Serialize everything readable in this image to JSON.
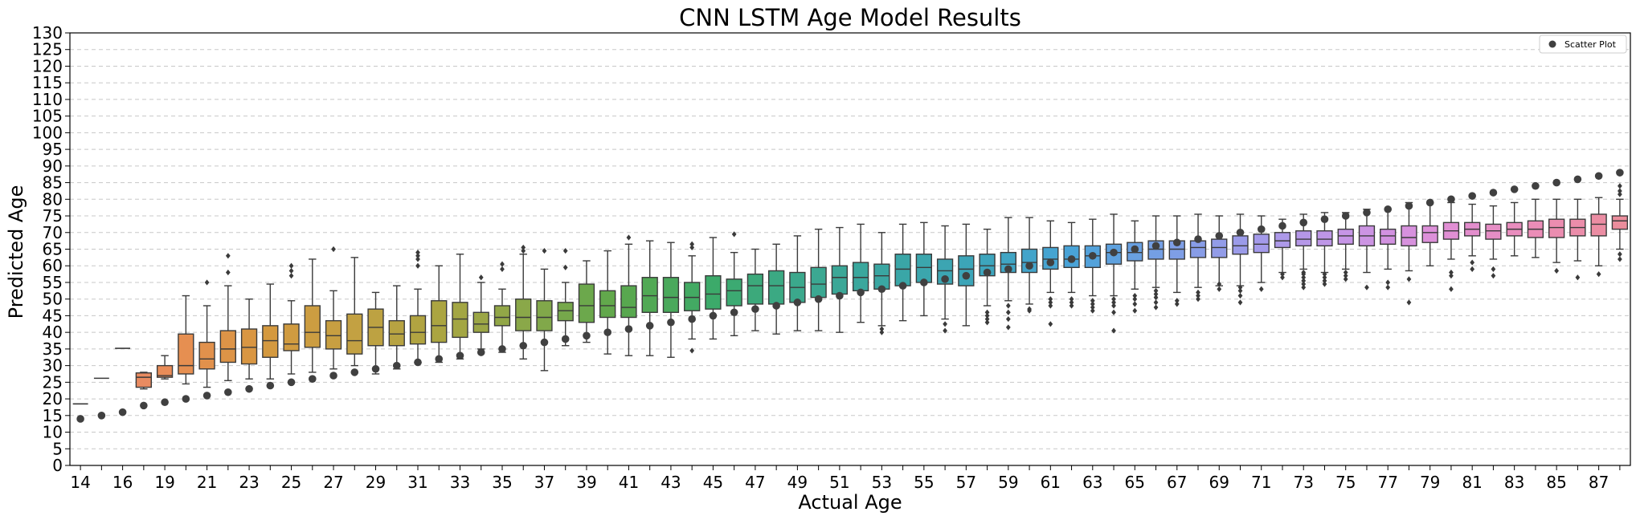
{
  "chart_data": {
    "type": "box",
    "title": "CNN LSTM Age Model Results",
    "xlabel": "Actual Age",
    "ylabel": "Predicted Age",
    "ylim": [
      0,
      130
    ],
    "yticks": [
      0,
      5,
      10,
      15,
      20,
      25,
      30,
      35,
      40,
      45,
      50,
      55,
      60,
      65,
      70,
      75,
      80,
      85,
      90,
      95,
      100,
      105,
      110,
      115,
      120,
      125,
      130
    ],
    "grid": "y dashed",
    "legend": {
      "location": "top-right",
      "entries": [
        "Scatter Plot"
      ]
    },
    "categories": [
      14,
      15,
      16,
      18,
      19,
      20,
      21,
      22,
      23,
      24,
      25,
      26,
      27,
      28,
      29,
      30,
      31,
      32,
      33,
      34,
      35,
      36,
      37,
      38,
      39,
      40,
      41,
      42,
      43,
      44,
      45,
      46,
      47,
      48,
      49,
      50,
      51,
      52,
      53,
      54,
      55,
      56,
      57,
      58,
      59,
      60,
      61,
      62,
      63,
      64,
      65,
      66,
      67,
      68,
      69,
      70,
      71,
      72,
      73,
      74,
      75,
      76,
      77,
      78,
      79,
      80,
      81,
      82,
      83,
      84,
      85,
      86,
      87,
      88
    ],
    "shown_tick_labels": [
      "14",
      "16",
      "19",
      "21",
      "23",
      "25",
      "27",
      "29",
      "31",
      "33",
      "35",
      "37",
      "39",
      "41",
      "43",
      "45",
      "47",
      "49",
      "51",
      "53",
      "55",
      "57",
      "59",
      "61",
      "63",
      "65",
      "67",
      "69",
      "71",
      "73",
      "75",
      "77",
      "79",
      "81",
      "83",
      "85",
      "87"
    ],
    "boxes": [
      {
        "q1": 18.5,
        "med": 18.5,
        "q3": 18.5,
        "wlo": 18.5,
        "whi": 18.5,
        "fliers": []
      },
      {
        "q1": 26.2,
        "med": 26.2,
        "q3": 26.2,
        "wlo": 26.2,
        "whi": 26.2,
        "fliers": []
      },
      {
        "q1": 35.2,
        "med": 35.2,
        "q3": 35.2,
        "wlo": 35.2,
        "whi": 35.2,
        "fliers": []
      },
      {
        "q1": 23.5,
        "med": 26.5,
        "q3": 27.8,
        "wlo": 23,
        "whi": 28,
        "fliers": []
      },
      {
        "q1": 26.5,
        "med": 27,
        "q3": 30,
        "wlo": 26,
        "whi": 33,
        "fliers": []
      },
      {
        "q1": 27.5,
        "med": 30,
        "q3": 39.5,
        "wlo": 24.5,
        "whi": 51,
        "fliers": []
      },
      {
        "q1": 29,
        "med": 32,
        "q3": 37,
        "wlo": 23.5,
        "whi": 48,
        "fliers": [
          55
        ]
      },
      {
        "q1": 31,
        "med": 35,
        "q3": 40.5,
        "wlo": 25.5,
        "whi": 54,
        "fliers": [
          58,
          63
        ]
      },
      {
        "q1": 30.5,
        "med": 35.5,
        "q3": 41,
        "wlo": 26,
        "whi": 50,
        "fliers": []
      },
      {
        "q1": 32.5,
        "med": 37.5,
        "q3": 42,
        "wlo": 26,
        "whi": 54.5,
        "fliers": []
      },
      {
        "q1": 34.5,
        "med": 36.5,
        "q3": 42.5,
        "wlo": 27.5,
        "whi": 49.5,
        "fliers": [
          57,
          58.5,
          60
        ]
      },
      {
        "q1": 35.5,
        "med": 40,
        "q3": 48,
        "wlo": 28,
        "whi": 62,
        "fliers": []
      },
      {
        "q1": 35,
        "med": 39,
        "q3": 43.5,
        "wlo": 29,
        "whi": 52.5,
        "fliers": [
          65
        ]
      },
      {
        "q1": 33.5,
        "med": 37.5,
        "q3": 45.5,
        "wlo": 30,
        "whi": 62.5,
        "fliers": []
      },
      {
        "q1": 36,
        "med": 41.5,
        "q3": 47,
        "wlo": 27.5,
        "whi": 52,
        "fliers": []
      },
      {
        "q1": 36,
        "med": 39.5,
        "q3": 43.5,
        "wlo": 29,
        "whi": 54,
        "fliers": []
      },
      {
        "q1": 36.5,
        "med": 40,
        "q3": 45,
        "wlo": 31,
        "whi": 53,
        "fliers": [
          60,
          62,
          63,
          64
        ]
      },
      {
        "q1": 37,
        "med": 42,
        "q3": 49.5,
        "wlo": 31,
        "whi": 60,
        "fliers": []
      },
      {
        "q1": 38.5,
        "med": 44,
        "q3": 49,
        "wlo": 32,
        "whi": 63.5,
        "fliers": []
      },
      {
        "q1": 40,
        "med": 42.5,
        "q3": 46,
        "wlo": 35,
        "whi": 55,
        "fliers": [
          56.5
        ]
      },
      {
        "q1": 42,
        "med": 44.5,
        "q3": 48,
        "wlo": 34,
        "whi": 53,
        "fliers": [
          59,
          60.5
        ]
      },
      {
        "q1": 40.5,
        "med": 44.5,
        "q3": 50,
        "wlo": 32,
        "whi": 63.5,
        "fliers": [
          64.5,
          65.5
        ]
      },
      {
        "q1": 40.5,
        "med": 44.5,
        "q3": 49.5,
        "wlo": 28.5,
        "whi": 59,
        "fliers": [
          64.5
        ]
      },
      {
        "q1": 43.5,
        "med": 46.5,
        "q3": 49,
        "wlo": 36,
        "whi": 55,
        "fliers": [
          59.5,
          64.5
        ]
      },
      {
        "q1": 43,
        "med": 48,
        "q3": 54.5,
        "wlo": 37,
        "whi": 61.5,
        "fliers": []
      },
      {
        "q1": 44.5,
        "med": 48,
        "q3": 52.5,
        "wlo": 33.5,
        "whi": 64.5,
        "fliers": []
      },
      {
        "q1": 44.5,
        "med": 47.5,
        "q3": 54,
        "wlo": 33,
        "whi": 66.5,
        "fliers": [
          68.5
        ]
      },
      {
        "q1": 46,
        "med": 51,
        "q3": 56.5,
        "wlo": 33,
        "whi": 67.5,
        "fliers": []
      },
      {
        "q1": 46,
        "med": 50.5,
        "q3": 56.5,
        "wlo": 32.5,
        "whi": 67,
        "fliers": []
      },
      {
        "q1": 46.5,
        "med": 50.5,
        "q3": 55,
        "wlo": 38,
        "whi": 63,
        "fliers": [
          34.5,
          65.5,
          66.5
        ]
      },
      {
        "q1": 47,
        "med": 51.5,
        "q3": 57,
        "wlo": 38,
        "whi": 68.5,
        "fliers": []
      },
      {
        "q1": 48,
        "med": 52.5,
        "q3": 56,
        "wlo": 39,
        "whi": 64,
        "fliers": [
          69.5
        ]
      },
      {
        "q1": 48.5,
        "med": 54,
        "q3": 57.5,
        "wlo": 40.5,
        "whi": 65,
        "fliers": []
      },
      {
        "q1": 48.5,
        "med": 54,
        "q3": 58.5,
        "wlo": 39.5,
        "whi": 66.5,
        "fliers": []
      },
      {
        "q1": 49,
        "med": 53.5,
        "q3": 58,
        "wlo": 40.5,
        "whi": 69,
        "fliers": []
      },
      {
        "q1": 50.5,
        "med": 54.5,
        "q3": 59.5,
        "wlo": 40.5,
        "whi": 71,
        "fliers": []
      },
      {
        "q1": 51.5,
        "med": 56.5,
        "q3": 60,
        "wlo": 40,
        "whi": 71.5,
        "fliers": []
      },
      {
        "q1": 52.5,
        "med": 56.5,
        "q3": 61,
        "wlo": 43,
        "whi": 72.5,
        "fliers": []
      },
      {
        "q1": 53,
        "med": 57,
        "q3": 60.5,
        "wlo": 42,
        "whi": 70,
        "fliers": [
          40,
          41
        ]
      },
      {
        "q1": 54,
        "med": 59,
        "q3": 63.5,
        "wlo": 43.5,
        "whi": 72.5,
        "fliers": []
      },
      {
        "q1": 55,
        "med": 59.5,
        "q3": 63.5,
        "wlo": 45,
        "whi": 73,
        "fliers": []
      },
      {
        "q1": 54.5,
        "med": 58.5,
        "q3": 62,
        "wlo": 44,
        "whi": 72,
        "fliers": [
          40.5,
          42.5
        ]
      },
      {
        "q1": 54,
        "med": 59,
        "q3": 63,
        "wlo": 42,
        "whi": 72.5,
        "fliers": []
      },
      {
        "q1": 57,
        "med": 60,
        "q3": 63.5,
        "wlo": 48,
        "whi": 71,
        "fliers": [
          43,
          44,
          45,
          46
        ]
      },
      {
        "q1": 58,
        "med": 60.5,
        "q3": 64,
        "wlo": 49.5,
        "whi": 74.5,
        "fliers": [
          41.5,
          44,
          46,
          48
        ]
      },
      {
        "q1": 58,
        "med": 61,
        "q3": 65,
        "wlo": 48.5,
        "whi": 74.5,
        "fliers": [
          46.5,
          47
        ]
      },
      {
        "q1": 59,
        "med": 62,
        "q3": 65.5,
        "wlo": 52,
        "whi": 73.5,
        "fliers": [
          42.5,
          48,
          49,
          50
        ]
      },
      {
        "q1": 59.5,
        "med": 62,
        "q3": 66,
        "wlo": 52,
        "whi": 73,
        "fliers": [
          48,
          49,
          50
        ]
      },
      {
        "q1": 59.5,
        "med": 63,
        "q3": 66,
        "wlo": 51,
        "whi": 74,
        "fliers": [
          46.5,
          47.5,
          48.5,
          49.5
        ]
      },
      {
        "q1": 60.5,
        "med": 64,
        "q3": 66.5,
        "wlo": 51,
        "whi": 75.5,
        "fliers": [
          40.5,
          46,
          48,
          49,
          50
        ]
      },
      {
        "q1": 61.5,
        "med": 64,
        "q3": 67,
        "wlo": 53,
        "whi": 73.5,
        "fliers": [
          46.5,
          48.5,
          50,
          51
        ]
      },
      {
        "q1": 62,
        "med": 65,
        "q3": 67.5,
        "wlo": 53.5,
        "whi": 75,
        "fliers": [
          47.5,
          49,
          50.5,
          51.5,
          52.5
        ]
      },
      {
        "q1": 62,
        "med": 65,
        "q3": 67.5,
        "wlo": 52,
        "whi": 75,
        "fliers": [
          48.5,
          49.5
        ]
      },
      {
        "q1": 62.5,
        "med": 65.5,
        "q3": 67.5,
        "wlo": 53.5,
        "whi": 75.5,
        "fliers": [
          50,
          51,
          52
        ]
      },
      {
        "q1": 62.5,
        "med": 65.5,
        "q3": 68,
        "wlo": 54,
        "whi": 75,
        "fliers": [
          53,
          54.5
        ]
      },
      {
        "q1": 63.5,
        "med": 66,
        "q3": 69,
        "wlo": 54,
        "whi": 75.5,
        "fliers": [
          49,
          51,
          52.5,
          53.5
        ]
      },
      {
        "q1": 64,
        "med": 66.5,
        "q3": 69.5,
        "wlo": 55,
        "whi": 75,
        "fliers": [
          53
        ]
      },
      {
        "q1": 65.5,
        "med": 67.5,
        "q3": 70,
        "wlo": 58,
        "whi": 74,
        "fliers": [
          56.5,
          57.5
        ]
      },
      {
        "q1": 66,
        "med": 68,
        "q3": 70.5,
        "wlo": 59,
        "whi": 75.5,
        "fliers": [
          53.5,
          54.5,
          55.5,
          56.5,
          57.5,
          58
        ]
      },
      {
        "q1": 66,
        "med": 68,
        "q3": 70.5,
        "wlo": 58,
        "whi": 76,
        "fliers": [
          54.5,
          55.5,
          56.5,
          57.5
        ]
      },
      {
        "q1": 66.5,
        "med": 69,
        "q3": 71,
        "wlo": 59,
        "whi": 76,
        "fliers": [
          56,
          57,
          58
        ]
      },
      {
        "q1": 66,
        "med": 69,
        "q3": 72,
        "wlo": 58,
        "whi": 77,
        "fliers": [
          53.5
        ]
      },
      {
        "q1": 66.5,
        "med": 69,
        "q3": 71,
        "wlo": 59,
        "whi": 77,
        "fliers": [
          53.5,
          55
        ]
      },
      {
        "q1": 66,
        "med": 68.5,
        "q3": 72,
        "wlo": 58.5,
        "whi": 79,
        "fliers": [
          49,
          56
        ]
      },
      {
        "q1": 67,
        "med": 70,
        "q3": 72,
        "wlo": 60,
        "whi": 79,
        "fliers": []
      },
      {
        "q1": 68,
        "med": 70.5,
        "q3": 73,
        "wlo": 62,
        "whi": 79,
        "fliers": [
          53,
          57,
          58
        ]
      },
      {
        "q1": 69,
        "med": 71,
        "q3": 73,
        "wlo": 63,
        "whi": 78.5,
        "fliers": [
          59,
          61
        ]
      },
      {
        "q1": 68,
        "med": 70.5,
        "q3": 72.5,
        "wlo": 62,
        "whi": 78,
        "fliers": [
          57,
          59
        ]
      },
      {
        "q1": 69,
        "med": 71,
        "q3": 73,
        "wlo": 63,
        "whi": 79,
        "fliers": []
      },
      {
        "q1": 68.5,
        "med": 71,
        "q3": 73.5,
        "wlo": 62.5,
        "whi": 80,
        "fliers": []
      },
      {
        "q1": 68.5,
        "med": 71.5,
        "q3": 74,
        "wlo": 61,
        "whi": 80,
        "fliers": [
          58.5
        ]
      },
      {
        "q1": 69,
        "med": 71.5,
        "q3": 74,
        "wlo": 61.5,
        "whi": 80,
        "fliers": [
          56.5
        ]
      },
      {
        "q1": 69,
        "med": 72.5,
        "q3": 75.5,
        "wlo": 60,
        "whi": 80.5,
        "fliers": [
          57.5
        ]
      },
      {
        "q1": 71,
        "med": 73.5,
        "q3": 75,
        "wlo": 65,
        "whi": 80,
        "fliers": [
          62,
          63.5,
          81.5,
          82.5,
          84
        ]
      }
    ],
    "scatter": [
      14,
      15,
      16,
      18,
      19,
      20,
      21,
      22,
      23,
      24,
      25,
      26,
      27,
      28,
      29,
      30,
      31,
      32,
      33,
      34,
      35,
      36,
      37,
      38,
      39,
      40,
      41,
      42,
      43,
      44,
      45,
      46,
      47,
      48,
      49,
      50,
      51,
      52,
      53,
      54,
      55,
      56,
      57,
      58,
      59,
      60,
      61,
      62,
      63,
      64,
      65,
      66,
      67,
      68,
      69,
      70,
      71,
      72,
      73,
      74,
      75,
      76,
      77,
      78,
      79,
      80,
      81,
      82,
      83,
      84,
      85,
      86,
      87,
      88
    ],
    "colors": {
      "axis": "#000000",
      "grid": "#c8c8c8",
      "scatter": "#404040",
      "box_edge": "#3a3a3a",
      "palette": [
        "#e8857c",
        "#e98d55",
        "#d6983f",
        "#c4a142",
        "#aaa541",
        "#86a84a",
        "#5aa84d",
        "#3caa6a",
        "#3ba88f",
        "#3aa6a5",
        "#3da5bd",
        "#4aa3d9",
        "#7a9ee5",
        "#a39aea",
        "#c795e6",
        "#df8fd8",
        "#eb8db9",
        "#eb8d9c"
      ]
    }
  }
}
